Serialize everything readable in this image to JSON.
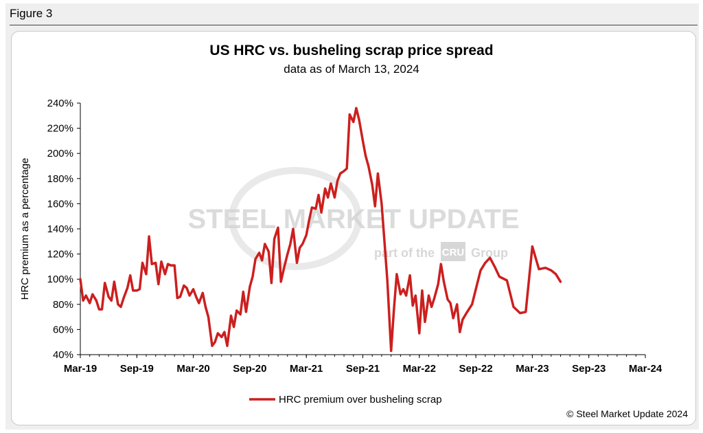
{
  "figure_label": "Figure 3",
  "copyright": "© Steel Market Update 2024",
  "watermark": {
    "main": "STEEL MARKET UPDATE",
    "sub_left": "part of the",
    "sub_logo": "CRU",
    "sub_right": "Group"
  },
  "colors": {
    "line": "#cc1f1f",
    "axis": "#000000",
    "watermark": "#d3d3d3"
  },
  "chart_data": {
    "type": "line",
    "title": "US HRC vs. busheling scrap price spread",
    "subtitle": "data as of March 13, 2024",
    "xlabel": "",
    "ylabel": "HRC premium as a percentage",
    "y_unit": "%",
    "ylim": [
      40,
      240
    ],
    "yticks": [
      "40%",
      "60%",
      "80%",
      "100%",
      "120%",
      "140%",
      "160%",
      "180%",
      "200%",
      "220%",
      "240%"
    ],
    "xticks": [
      "Mar-19",
      "Sep-19",
      "Mar-20",
      "Sep-20",
      "Mar-21",
      "Sep-21",
      "Mar-22",
      "Sep-22",
      "Mar-23",
      "Sep-23",
      "Mar-24"
    ],
    "xlim": [
      "2019-03",
      "2024-03"
    ],
    "grid": false,
    "legend_position": "bottom-center",
    "series": [
      {
        "name": "HRC premium over busheling scrap",
        "points": [
          [
            "2019-03",
            100
          ],
          [
            "2019-03.3",
            83
          ],
          [
            "2019-03.6",
            87
          ],
          [
            "2019-04",
            81
          ],
          [
            "2019-04.3",
            88
          ],
          [
            "2019-04.7",
            83
          ],
          [
            "2019-05",
            76
          ],
          [
            "2019-05.3",
            76
          ],
          [
            "2019-05.6",
            97
          ],
          [
            "2019-06",
            86
          ],
          [
            "2019-06.3",
            83
          ],
          [
            "2019-06.6",
            98
          ],
          [
            "2019-07",
            80
          ],
          [
            "2019-07.3",
            78
          ],
          [
            "2019-07.6",
            85
          ],
          [
            "2019-08",
            93
          ],
          [
            "2019-08.3",
            103
          ],
          [
            "2019-08.6",
            91
          ],
          [
            "2019-09",
            91
          ],
          [
            "2019-09.3",
            92
          ],
          [
            "2019-09.6",
            113
          ],
          [
            "2019-10",
            104
          ],
          [
            "2019-10.3",
            134
          ],
          [
            "2019-10.6",
            112
          ],
          [
            "2019-11",
            113
          ],
          [
            "2019-11.3",
            96
          ],
          [
            "2019-11.6",
            114
          ],
          [
            "2019-12",
            104
          ],
          [
            "2019-12.3",
            112
          ],
          [
            "2019-12.6",
            111
          ],
          [
            "2020-01",
            111
          ],
          [
            "2020-01.3",
            85
          ],
          [
            "2020-01.6",
            86
          ],
          [
            "2020-02",
            95
          ],
          [
            "2020-02.3",
            93
          ],
          [
            "2020-02.6",
            87
          ],
          [
            "2020-03",
            92
          ],
          [
            "2020-03.3",
            86
          ],
          [
            "2020-03.6",
            81
          ],
          [
            "2020-04",
            89
          ],
          [
            "2020-04.3",
            78
          ],
          [
            "2020-04.6",
            70
          ],
          [
            "2020-05",
            47
          ],
          [
            "2020-05.3",
            50
          ],
          [
            "2020-05.6",
            57
          ],
          [
            "2020-06",
            54
          ],
          [
            "2020-06.3",
            58
          ],
          [
            "2020-06.6",
            47
          ],
          [
            "2020-07",
            71
          ],
          [
            "2020-07.3",
            62
          ],
          [
            "2020-07.6",
            75
          ],
          [
            "2020-08",
            72
          ],
          [
            "2020-08.3",
            90
          ],
          [
            "2020-08.6",
            74
          ],
          [
            "2020-09",
            94
          ],
          [
            "2020-09.3",
            102
          ],
          [
            "2020-09.6",
            116
          ],
          [
            "2020-10",
            121
          ],
          [
            "2020-10.3",
            115
          ],
          [
            "2020-10.6",
            128
          ],
          [
            "2020-11",
            122
          ],
          [
            "2020-11.3",
            97
          ],
          [
            "2020-11.6",
            132
          ],
          [
            "2020-12",
            141
          ],
          [
            "2020-12.3",
            98
          ],
          [
            "2020-12.6",
            108
          ],
          [
            "2021-01",
            120
          ],
          [
            "2021-01.3",
            128
          ],
          [
            "2021-01.6",
            140
          ],
          [
            "2021-02",
            113
          ],
          [
            "2021-02.3",
            125
          ],
          [
            "2021-02.6",
            128
          ],
          [
            "2021-03",
            135
          ],
          [
            "2021-03.3",
            147
          ],
          [
            "2021-03.6",
            157
          ],
          [
            "2021-04",
            156
          ],
          [
            "2021-04.3",
            167
          ],
          [
            "2021-04.6",
            153
          ],
          [
            "2021-05",
            172
          ],
          [
            "2021-05.3",
            165
          ],
          [
            "2021-05.6",
            176
          ],
          [
            "2021-06",
            165
          ],
          [
            "2021-06.3",
            178
          ],
          [
            "2021-06.6",
            184
          ],
          [
            "2021-07",
            186
          ],
          [
            "2021-07.3",
            188
          ],
          [
            "2021-07.6",
            231
          ],
          [
            "2021-08",
            225
          ],
          [
            "2021-08.3",
            236
          ],
          [
            "2021-08.6",
            227
          ],
          [
            "2021-09",
            210
          ],
          [
            "2021-09.3",
            198
          ],
          [
            "2021-09.6",
            190
          ],
          [
            "2021-10",
            175
          ],
          [
            "2021-10.3",
            158
          ],
          [
            "2021-10.6",
            184
          ],
          [
            "2021-11",
            160
          ],
          [
            "2021-11.3",
            130
          ],
          [
            "2021-11.6",
            99
          ],
          [
            "2021-12",
            43
          ],
          [
            "2021-12.3",
            76
          ],
          [
            "2021-12.6",
            104
          ],
          [
            "2022-01",
            88
          ],
          [
            "2022-01.3",
            92
          ],
          [
            "2022-01.6",
            87
          ],
          [
            "2022-02",
            103
          ],
          [
            "2022-02.3",
            79
          ],
          [
            "2022-02.6",
            87
          ],
          [
            "2022-03",
            57
          ],
          [
            "2022-03.3",
            91
          ],
          [
            "2022-03.6",
            66
          ],
          [
            "2022-04",
            87
          ],
          [
            "2022-04.3",
            78
          ],
          [
            "2022-04.6",
            85
          ],
          [
            "2022-05",
            96
          ],
          [
            "2022-05.3",
            112
          ],
          [
            "2022-05.6",
            98
          ],
          [
            "2022-06",
            84
          ],
          [
            "2022-06.3",
            81
          ],
          [
            "2022-06.6",
            69
          ],
          [
            "2022-07",
            80
          ],
          [
            "2022-07.3",
            58
          ],
          [
            "2022-07.6",
            68
          ],
          [
            "2022-08",
            73
          ],
          [
            "2022-08.6",
            80
          ],
          [
            "2022-09",
            92
          ],
          [
            "2022-09.5",
            107
          ],
          [
            "2022-10",
            113
          ],
          [
            "2022-10.5",
            117
          ],
          [
            "2022-11",
            110
          ],
          [
            "2022-11.5",
            102
          ],
          [
            "2022-12.3",
            99
          ],
          [
            "2023-01",
            78
          ],
          [
            "2023-01.7",
            73
          ],
          [
            "2023-02.3",
            74
          ],
          [
            "2023-03",
            126
          ],
          [
            "2023-03.7",
            108
          ],
          [
            "2023-04.4",
            109
          ],
          [
            "2023-05",
            107
          ],
          [
            "2023-05.5",
            104
          ],
          [
            "2023-06",
            98
          ]
        ]
      }
    ]
  }
}
